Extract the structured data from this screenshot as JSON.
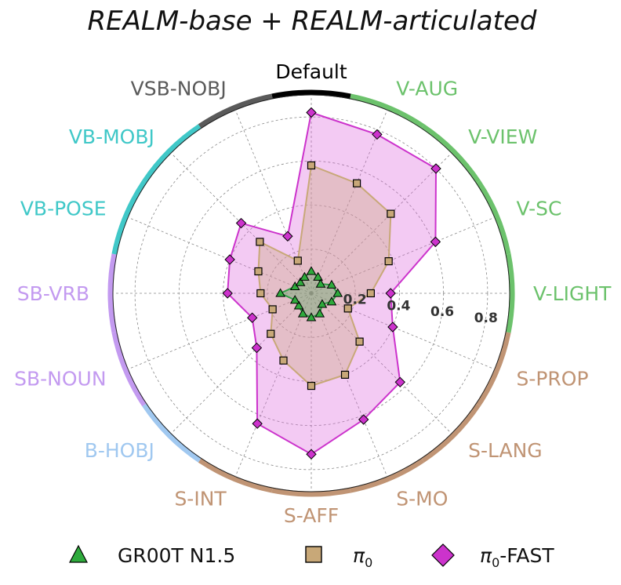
{
  "chart_data": {
    "type": "radar",
    "title": "REALM-base + REALM-articulated",
    "rlim": [
      0,
      0.9
    ],
    "rticks": [
      0.2,
      0.4,
      0.6,
      0.8
    ],
    "rtick_labels": [
      "0.2",
      "0.4",
      "0.6",
      "0.8"
    ],
    "grid": true,
    "legend_position": "bottom",
    "categories": [
      "Default",
      "V-AUG",
      "V-VIEW",
      "V-SC",
      "V-LIGHT",
      "S-PROP",
      "S-LANG",
      "S-MO",
      "S-AFF",
      "S-INT",
      "B-HOBJ",
      "SB-NOUN",
      "SB-VRB",
      "VB-POSE",
      "VB-MOBJ",
      "VSB-NOBJ"
    ],
    "category_colors": [
      "#000000",
      "#6cc26c",
      "#6cc26c",
      "#6cc26c",
      "#6cc26c",
      "#c09474",
      "#c09474",
      "#c09474",
      "#c09474",
      "#c09474",
      "#a0c8f0",
      "#c39af0",
      "#c39af0",
      "#40c8c8",
      "#40c8c8",
      "#5a5a5a"
    ],
    "label_colors": [
      "#000000",
      "#6cc26c",
      "#6cc26c",
      "#6cc26c",
      "#6cc26c",
      "#c09474",
      "#c09474",
      "#c09474",
      "#c09474",
      "#c09474",
      "#a0c8f0",
      "#c39af0",
      "#c39af0",
      "#40c8c8",
      "#40c8c8",
      "#5a5a5a"
    ],
    "series": [
      {
        "name": "GR00T N1.5",
        "name_main": "GR00T N1.5",
        "name_sub": "",
        "marker": "triangle",
        "line_color": "#2e9e44",
        "fill_color": "#2e9e44",
        "fill_opacity": 0.3,
        "marker_color": "#2eaa3c",
        "values": [
          0.1,
          0.08,
          0.06,
          0.1,
          0.12,
          0.1,
          0.07,
          0.1,
          0.11,
          0.1,
          0.08,
          0.08,
          0.14,
          0.08,
          0.07,
          0.08
        ]
      },
      {
        "name": "π0",
        "name_main": "π",
        "name_sub": "0",
        "marker": "square",
        "line_color": "#c8a878",
        "fill_color": "#c8a878",
        "fill_opacity": 0.35,
        "marker_color": "#c8a878",
        "values": [
          0.58,
          0.54,
          0.51,
          0.38,
          0.27,
          0.18,
          0.31,
          0.4,
          0.42,
          0.33,
          0.26,
          0.19,
          0.23,
          0.26,
          0.33,
          0.16
        ]
      },
      {
        "name": "π0-FAST",
        "name_main": "π",
        "name_sub": "0",
        "name_suffix": "-FAST",
        "marker": "diamond",
        "line_color": "#cc33cc",
        "fill_color": "#dd66dd",
        "fill_opacity": 0.35,
        "marker_color": "#cc33cc",
        "values": [
          0.82,
          0.78,
          0.8,
          0.61,
          0.36,
          0.4,
          0.57,
          0.62,
          0.73,
          0.64,
          0.35,
          0.29,
          0.38,
          0.4,
          0.45,
          0.28
        ]
      }
    ]
  }
}
